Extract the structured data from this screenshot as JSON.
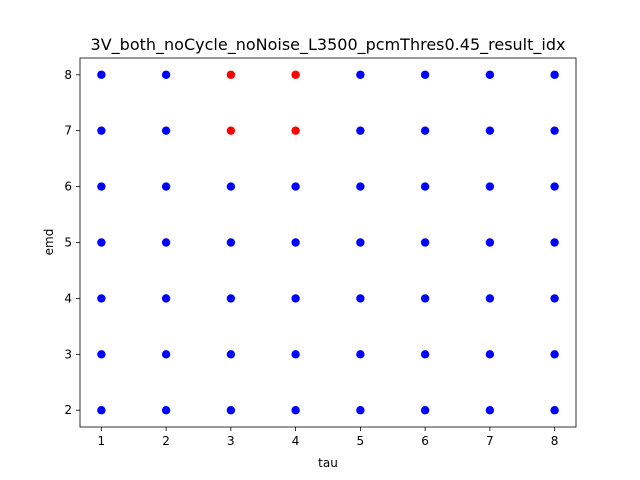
{
  "chart_data": {
    "type": "scatter",
    "title": "3V_both_noCycle_noNoise_L3500_pcmThres0.45_result_idx",
    "xlabel": "tau",
    "ylabel": "emd",
    "xlim": [
      0.67,
      8.33
    ],
    "ylim": [
      1.7,
      8.3
    ],
    "xticks": [
      1,
      2,
      3,
      4,
      5,
      6,
      7,
      8
    ],
    "yticks": [
      2,
      3,
      4,
      5,
      6,
      7,
      8
    ],
    "grid": false,
    "series": [
      {
        "name": "blue",
        "color": "#0000ff",
        "points": [
          [
            1,
            2
          ],
          [
            2,
            2
          ],
          [
            3,
            2
          ],
          [
            4,
            2
          ],
          [
            5,
            2
          ],
          [
            6,
            2
          ],
          [
            7,
            2
          ],
          [
            8,
            2
          ],
          [
            1,
            3
          ],
          [
            2,
            3
          ],
          [
            3,
            3
          ],
          [
            4,
            3
          ],
          [
            5,
            3
          ],
          [
            6,
            3
          ],
          [
            7,
            3
          ],
          [
            8,
            3
          ],
          [
            1,
            4
          ],
          [
            2,
            4
          ],
          [
            3,
            4
          ],
          [
            4,
            4
          ],
          [
            5,
            4
          ],
          [
            6,
            4
          ],
          [
            7,
            4
          ],
          [
            8,
            4
          ],
          [
            1,
            5
          ],
          [
            2,
            5
          ],
          [
            3,
            5
          ],
          [
            4,
            5
          ],
          [
            5,
            5
          ],
          [
            6,
            5
          ],
          [
            7,
            5
          ],
          [
            8,
            5
          ],
          [
            1,
            6
          ],
          [
            2,
            6
          ],
          [
            3,
            6
          ],
          [
            4,
            6
          ],
          [
            5,
            6
          ],
          [
            6,
            6
          ],
          [
            7,
            6
          ],
          [
            8,
            6
          ],
          [
            1,
            7
          ],
          [
            2,
            7
          ],
          [
            5,
            7
          ],
          [
            6,
            7
          ],
          [
            7,
            7
          ],
          [
            8,
            7
          ],
          [
            1,
            8
          ],
          [
            2,
            8
          ],
          [
            5,
            8
          ],
          [
            6,
            8
          ],
          [
            7,
            8
          ],
          [
            8,
            8
          ]
        ]
      },
      {
        "name": "red",
        "color": "#ff0000",
        "points": [
          [
            3,
            7
          ],
          [
            4,
            7
          ],
          [
            3,
            8
          ],
          [
            4,
            8
          ]
        ]
      }
    ]
  }
}
